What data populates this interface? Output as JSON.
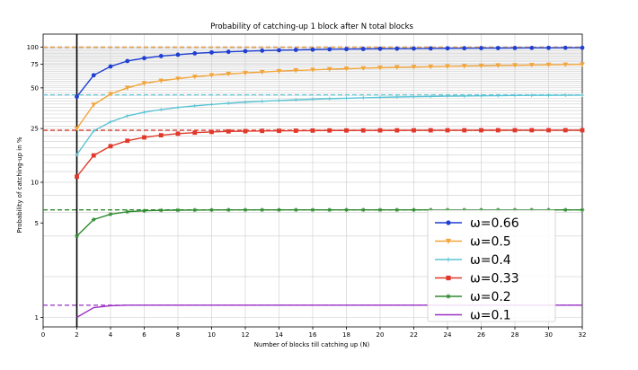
{
  "chart_data": {
    "type": "line",
    "title": "Probability of catching-up 1 block after N total blocks",
    "xlabel": "Number of blocks till catching up (N)",
    "ylabel": "Probability of catching-up in %",
    "xlim": [
      0,
      32
    ],
    "ylim": [
      0.85,
      125
    ],
    "y_scale": "log",
    "grid": true,
    "legend_position": "lower-right",
    "x_ticks": [
      "0",
      "2",
      "4",
      "6",
      "8",
      "10",
      "12",
      "14",
      "16",
      "18",
      "20",
      "22",
      "24",
      "26",
      "28",
      "30",
      "32"
    ],
    "y_ticks": [
      "1",
      "5",
      "10",
      "25",
      "50",
      "75",
      "100"
    ],
    "vertical_line_x": 2,
    "series": [
      {
        "name": "ω=0.66",
        "color": "#1f3fd1",
        "marker": "circle",
        "asymptote": 100,
        "values": [
          43,
          62,
          72,
          79,
          83,
          86,
          88,
          90,
          91.5,
          92.5,
          93.5,
          94.3,
          95,
          95.5,
          96,
          96.5,
          96.8,
          97.1,
          97.4,
          97.6,
          97.8,
          98,
          98.2,
          98.3,
          98.5,
          98.6,
          98.7,
          98.8,
          98.9,
          99,
          99.1
        ]
      },
      {
        "name": "ω=0.5",
        "color": "#f2a53a",
        "marker": "triangle-down",
        "asymptote": 100,
        "values": [
          25,
          37.5,
          45,
          50,
          54,
          56.5,
          58.5,
          60.5,
          62,
          63.5,
          64.5,
          65.5,
          66.5,
          67.3,
          68,
          68.7,
          69.3,
          69.9,
          70.4,
          70.9,
          71.3,
          71.7,
          72.1,
          72.5,
          72.8,
          73.2,
          73.5,
          73.8,
          74.1,
          74.3,
          74.6
        ]
      },
      {
        "name": "ω=0.4",
        "color": "#5bc4d4",
        "marker": "plus",
        "asymptote": 44.4,
        "values": [
          16,
          24,
          28,
          31,
          33,
          34.5,
          35.8,
          36.8,
          37.7,
          38.5,
          39.2,
          39.8,
          40.3,
          40.8,
          41.2,
          41.6,
          41.9,
          42.2,
          42.5,
          42.8,
          43,
          43.2,
          43.4,
          43.5,
          43.7,
          43.8,
          43.9,
          44,
          44.05,
          44.1,
          44.15
        ]
      },
      {
        "name": "ω=0.33",
        "color": "#e0392b",
        "marker": "square",
        "asymptote": 24.3,
        "values": [
          11,
          15.8,
          18.5,
          20.3,
          21.5,
          22.3,
          22.9,
          23.3,
          23.6,
          23.8,
          23.9,
          24,
          24.05,
          24.1,
          24.15,
          24.2,
          24.2,
          24.22,
          24.24,
          24.25,
          24.26,
          24.27,
          24.28,
          24.28,
          24.29,
          24.29,
          24.3,
          24.3,
          24.3,
          24.3,
          24.3
        ]
      },
      {
        "name": "ω=0.2",
        "color": "#2e8b2e",
        "marker": "star",
        "asymptote": 6.25,
        "values": [
          4,
          5.3,
          5.8,
          6.05,
          6.15,
          6.2,
          6.22,
          6.23,
          6.24,
          6.25,
          6.25,
          6.25,
          6.25,
          6.25,
          6.25,
          6.25,
          6.25,
          6.25,
          6.25,
          6.25,
          6.25,
          6.25,
          6.25,
          6.25,
          6.25,
          6.25,
          6.25,
          6.25,
          6.25,
          6.25,
          6.25
        ]
      },
      {
        "name": "ω=0.1",
        "color": "#9a2fc4",
        "marker": "none",
        "asymptote": 1.23,
        "values": [
          1,
          1.18,
          1.22,
          1.23,
          1.23,
          1.23,
          1.23,
          1.23,
          1.23,
          1.23,
          1.23,
          1.23,
          1.23,
          1.23,
          1.23,
          1.23,
          1.23,
          1.23,
          1.23,
          1.23,
          1.23,
          1.23,
          1.23,
          1.23,
          1.23,
          1.23,
          1.23,
          1.23,
          1.23,
          1.23,
          1.23
        ]
      }
    ],
    "x": [
      2,
      3,
      4,
      5,
      6,
      7,
      8,
      9,
      10,
      11,
      12,
      13,
      14,
      15,
      16,
      17,
      18,
      19,
      20,
      21,
      22,
      23,
      24,
      25,
      26,
      27,
      28,
      29,
      30,
      31,
      32
    ]
  }
}
